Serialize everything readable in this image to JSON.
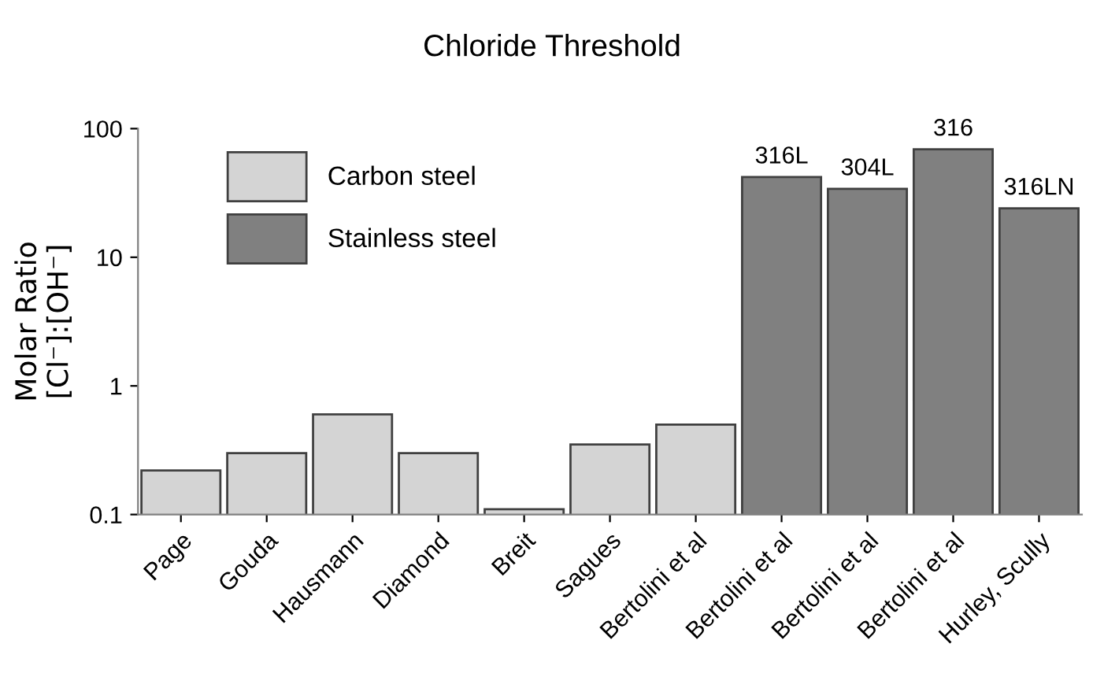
{
  "chart_data": {
    "type": "bar",
    "title": "Chloride Threshold",
    "ylabel": "Molar Ratio\n[Cl⁻]:[OH⁻]",
    "categories": [
      "Page",
      "Gouda",
      "Hausmann",
      "Diamond",
      "Breit",
      "Sagues",
      "Bertolini et al",
      "Bertolini et al",
      "Bertolini et al",
      "Bertolini et al",
      "Hurley, Scully"
    ],
    "series": [
      {
        "name": "Carbon steel",
        "color": "#d4d4d4",
        "values": [
          0.22,
          0.3,
          0.6,
          0.3,
          0.11,
          0.35,
          0.5,
          null,
          null,
          null,
          null
        ]
      },
      {
        "name": "Stainless steel",
        "color": "#808080",
        "values": [
          null,
          null,
          null,
          null,
          null,
          null,
          null,
          42,
          34,
          69,
          24
        ]
      }
    ],
    "annotations": [
      "316L",
      "304L",
      "316",
      "316LN"
    ],
    "log": "y",
    "ylim": [
      0.1,
      100
    ],
    "yticks": [
      0.1,
      1,
      10,
      100
    ],
    "grid": false,
    "legend": "top left"
  }
}
